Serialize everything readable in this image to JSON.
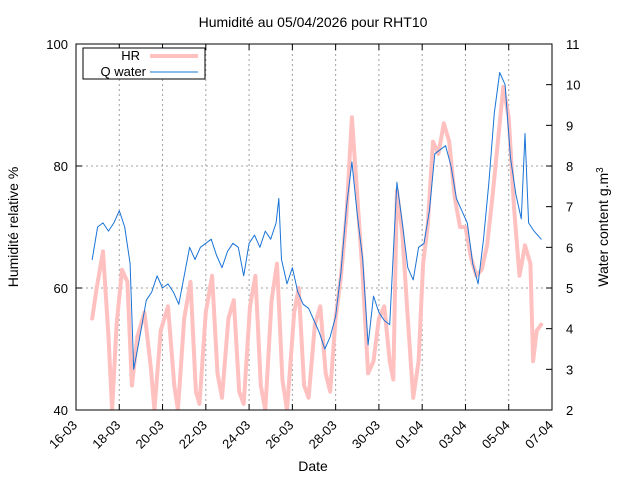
{
  "chart_data": {
    "type": "line",
    "title": "Humidité au 05/04/2026 pour RHT10",
    "xlabel": "Date",
    "ylabel": "Humidité relative %",
    "y2label": "Water content g.m",
    "y2label_sup": "3",
    "ylim": [
      40,
      100
    ],
    "y2lim": [
      2,
      11
    ],
    "xlim": [
      "2026-03-16",
      "2026-04-07"
    ],
    "yticks": [
      40,
      60,
      80,
      100
    ],
    "y2ticks": [
      2,
      3,
      4,
      5,
      6,
      7,
      8,
      9,
      10,
      11
    ],
    "xticks": [
      {
        "date": "2026-03-16",
        "label": "16-03"
      },
      {
        "date": "2026-03-18",
        "label": "18-03"
      },
      {
        "date": "2026-03-20",
        "label": "20-03"
      },
      {
        "date": "2026-03-22",
        "label": "22-03"
      },
      {
        "date": "2026-03-24",
        "label": "24-03"
      },
      {
        "date": "2026-03-26",
        "label": "26-03"
      },
      {
        "date": "2026-03-28",
        "label": "28-03"
      },
      {
        "date": "2026-03-30",
        "label": "30-03"
      },
      {
        "date": "2026-04-01",
        "label": "01-04"
      },
      {
        "date": "2026-04-03",
        "label": "03-04"
      },
      {
        "date": "2026-04-05",
        "label": "05-04"
      },
      {
        "date": "2026-04-07",
        "label": "07-04"
      }
    ],
    "grid": true,
    "legend_position": "top-left",
    "series": [
      {
        "name": "HR",
        "axis": "left",
        "color": "#ffc0c0",
        "points": [
          [
            "2026-03-16 18:00",
            55
          ],
          [
            "2026-03-16 23:00",
            60
          ],
          [
            "2026-03-17 06:00",
            66
          ],
          [
            "2026-03-17 12:00",
            52
          ],
          [
            "2026-03-17 16:00",
            40
          ],
          [
            "2026-03-17 21:00",
            54
          ],
          [
            "2026-03-18 03:00",
            63
          ],
          [
            "2026-03-18 09:00",
            61
          ],
          [
            "2026-03-18 14:00",
            44
          ],
          [
            "2026-03-18 20:00",
            52
          ],
          [
            "2026-03-19 04:00",
            56
          ],
          [
            "2026-03-19 11:00",
            47
          ],
          [
            "2026-03-19 15:00",
            40
          ],
          [
            "2026-03-19 22:00",
            53
          ],
          [
            "2026-03-20 06:00",
            57
          ],
          [
            "2026-03-20 13:00",
            44
          ],
          [
            "2026-03-20 17:00",
            40
          ],
          [
            "2026-03-21 00:00",
            55
          ],
          [
            "2026-03-21 07:00",
            61
          ],
          [
            "2026-03-21 13:00",
            43
          ],
          [
            "2026-03-21 17:00",
            41
          ],
          [
            "2026-03-22 00:00",
            56
          ],
          [
            "2026-03-22 07:00",
            62
          ],
          [
            "2026-03-22 13:00",
            46
          ],
          [
            "2026-03-22 18:00",
            42
          ],
          [
            "2026-03-23 01:00",
            55
          ],
          [
            "2026-03-23 07:00",
            58
          ],
          [
            "2026-03-23 13:00",
            43
          ],
          [
            "2026-03-23 18:00",
            41
          ],
          [
            "2026-03-24 01:00",
            57
          ],
          [
            "2026-03-24 07:00",
            62
          ],
          [
            "2026-03-24 13:00",
            44
          ],
          [
            "2026-03-24 18:00",
            40
          ],
          [
            "2026-03-25 01:00",
            58
          ],
          [
            "2026-03-25 07:00",
            64
          ],
          [
            "2026-03-25 13:00",
            45
          ],
          [
            "2026-03-25 18:00",
            40
          ],
          [
            "2026-03-26 02:00",
            56
          ],
          [
            "2026-03-26 07:00",
            60
          ],
          [
            "2026-03-26 13:00",
            44
          ],
          [
            "2026-03-26 18:00",
            42
          ],
          [
            "2026-03-27 01:00",
            54
          ],
          [
            "2026-03-27 07:00",
            57
          ],
          [
            "2026-03-27 13:00",
            46
          ],
          [
            "2026-03-27 18:00",
            43
          ],
          [
            "2026-03-28 00:00",
            55
          ],
          [
            "2026-03-28 06:00",
            62
          ],
          [
            "2026-03-28 12:00",
            72
          ],
          [
            "2026-03-28 18:00",
            88
          ],
          [
            "2026-03-29 00:00",
            75
          ],
          [
            "2026-03-29 06:00",
            62
          ],
          [
            "2026-03-29 12:00",
            46
          ],
          [
            "2026-03-29 18:00",
            48
          ],
          [
            "2026-03-30 00:00",
            55
          ],
          [
            "2026-03-30 06:00",
            57
          ],
          [
            "2026-03-30 12:00",
            48
          ],
          [
            "2026-03-30 16:00",
            45
          ],
          [
            "2026-03-30 20:00",
            76
          ],
          [
            "2026-03-31 02:00",
            69
          ],
          [
            "2026-03-31 08:00",
            55
          ],
          [
            "2026-03-31 14:00",
            42
          ],
          [
            "2026-03-31 20:00",
            48
          ],
          [
            "2026-04-01 01:00",
            64
          ],
          [
            "2026-04-01 06:00",
            70
          ],
          [
            "2026-04-01 12:00",
            84
          ],
          [
            "2026-04-01 18:00",
            82
          ],
          [
            "2026-04-02 00:00",
            87
          ],
          [
            "2026-04-02 06:00",
            84
          ],
          [
            "2026-04-02 12:00",
            75
          ],
          [
            "2026-04-02 18:00",
            70
          ],
          [
            "2026-04-03 00:00",
            70
          ],
          [
            "2026-04-03 06:00",
            65
          ],
          [
            "2026-04-03 12:00",
            62
          ],
          [
            "2026-04-03 18:00",
            63
          ],
          [
            "2026-04-04 00:00",
            67
          ],
          [
            "2026-04-04 06:00",
            75
          ],
          [
            "2026-04-04 12:00",
            84
          ],
          [
            "2026-04-04 18:00",
            93
          ],
          [
            "2026-04-05 00:00",
            88
          ],
          [
            "2026-04-05 06:00",
            73
          ],
          [
            "2026-04-05 12:00",
            62
          ],
          [
            "2026-04-05 18:00",
            67
          ],
          [
            "2026-04-06 00:00",
            64
          ],
          [
            "2026-04-06 03:00",
            48
          ],
          [
            "2026-04-06 07:00",
            53
          ],
          [
            "2026-04-06 12:00",
            54
          ]
        ]
      },
      {
        "name": "Q water",
        "axis": "right",
        "color": "#1a74d6",
        "points": [
          [
            "2026-03-16 18:00",
            5.7
          ],
          [
            "2026-03-17 00:00",
            6.5
          ],
          [
            "2026-03-17 06:00",
            6.6
          ],
          [
            "2026-03-17 12:00",
            6.4
          ],
          [
            "2026-03-17 18:00",
            6.6
          ],
          [
            "2026-03-18 00:00",
            6.9
          ],
          [
            "2026-03-18 06:00",
            6.5
          ],
          [
            "2026-03-18 12:00",
            5.6
          ],
          [
            "2026-03-18 16:00",
            3.0
          ],
          [
            "2026-03-18 22:00",
            3.7
          ],
          [
            "2026-03-19 06:00",
            4.7
          ],
          [
            "2026-03-19 12:00",
            4.9
          ],
          [
            "2026-03-19 18:00",
            5.3
          ],
          [
            "2026-03-20 00:00",
            5.0
          ],
          [
            "2026-03-20 06:00",
            5.1
          ],
          [
            "2026-03-20 12:00",
            4.9
          ],
          [
            "2026-03-20 18:00",
            4.6
          ],
          [
            "2026-03-21 00:00",
            5.3
          ],
          [
            "2026-03-21 06:00",
            6.0
          ],
          [
            "2026-03-21 12:00",
            5.7
          ],
          [
            "2026-03-21 18:00",
            6.0
          ],
          [
            "2026-03-22 00:00",
            6.1
          ],
          [
            "2026-03-22 06:00",
            6.2
          ],
          [
            "2026-03-22 12:00",
            5.8
          ],
          [
            "2026-03-22 18:00",
            5.5
          ],
          [
            "2026-03-23 00:00",
            5.9
          ],
          [
            "2026-03-23 06:00",
            6.1
          ],
          [
            "2026-03-23 12:00",
            6.0
          ],
          [
            "2026-03-23 18:00",
            5.3
          ],
          [
            "2026-03-24 00:00",
            6.1
          ],
          [
            "2026-03-24 06:00",
            6.3
          ],
          [
            "2026-03-24 12:00",
            6.0
          ],
          [
            "2026-03-24 18:00",
            6.4
          ],
          [
            "2026-03-25 00:00",
            6.2
          ],
          [
            "2026-03-25 06:00",
            6.6
          ],
          [
            "2026-03-25 09:00",
            7.2
          ],
          [
            "2026-03-25 12:00",
            5.7
          ],
          [
            "2026-03-25 18:00",
            5.1
          ],
          [
            "2026-03-26 00:00",
            5.5
          ],
          [
            "2026-03-26 06:00",
            4.9
          ],
          [
            "2026-03-26 12:00",
            4.6
          ],
          [
            "2026-03-26 18:00",
            4.5
          ],
          [
            "2026-03-27 00:00",
            4.2
          ],
          [
            "2026-03-27 06:00",
            3.9
          ],
          [
            "2026-03-27 12:00",
            3.5
          ],
          [
            "2026-03-27 18:00",
            3.8
          ],
          [
            "2026-03-28 00:00",
            4.3
          ],
          [
            "2026-03-28 06:00",
            5.4
          ],
          [
            "2026-03-28 12:00",
            7.0
          ],
          [
            "2026-03-28 18:00",
            8.1
          ],
          [
            "2026-03-29 00:00",
            6.8
          ],
          [
            "2026-03-29 06:00",
            5.7
          ],
          [
            "2026-03-29 12:00",
            3.6
          ],
          [
            "2026-03-29 18:00",
            4.8
          ],
          [
            "2026-03-30 00:00",
            4.4
          ],
          [
            "2026-03-30 06:00",
            4.2
          ],
          [
            "2026-03-30 12:00",
            4.1
          ],
          [
            "2026-03-30 20:00",
            7.6
          ],
          [
            "2026-03-31 02:00",
            6.6
          ],
          [
            "2026-03-31 08:00",
            5.5
          ],
          [
            "2026-03-31 14:00",
            5.2
          ],
          [
            "2026-03-31 20:00",
            6.0
          ],
          [
            "2026-04-01 02:00",
            6.1
          ],
          [
            "2026-04-01 08:00",
            6.9
          ],
          [
            "2026-04-01 14:00",
            8.3
          ],
          [
            "2026-04-01 20:00",
            8.4
          ],
          [
            "2026-04-02 02:00",
            8.5
          ],
          [
            "2026-04-02 08:00",
            8.0
          ],
          [
            "2026-04-02 14:00",
            7.2
          ],
          [
            "2026-04-02 20:00",
            6.9
          ],
          [
            "2026-04-03 02:00",
            6.6
          ],
          [
            "2026-04-03 08:00",
            5.6
          ],
          [
            "2026-04-03 14:00",
            5.1
          ],
          [
            "2026-04-03 20:00",
            6.2
          ],
          [
            "2026-04-04 02:00",
            7.6
          ],
          [
            "2026-04-04 08:00",
            9.3
          ],
          [
            "2026-04-04 14:00",
            10.3
          ],
          [
            "2026-04-04 20:00",
            10.0
          ],
          [
            "2026-04-05 02:00",
            8.2
          ],
          [
            "2026-04-05 08:00",
            7.3
          ],
          [
            "2026-04-05 14:00",
            6.7
          ],
          [
            "2026-04-05 18:00",
            8.8
          ],
          [
            "2026-04-05 22:00",
            6.6
          ],
          [
            "2026-04-06 04:00",
            6.4
          ],
          [
            "2026-04-06 12:00",
            6.2
          ]
        ]
      }
    ]
  }
}
